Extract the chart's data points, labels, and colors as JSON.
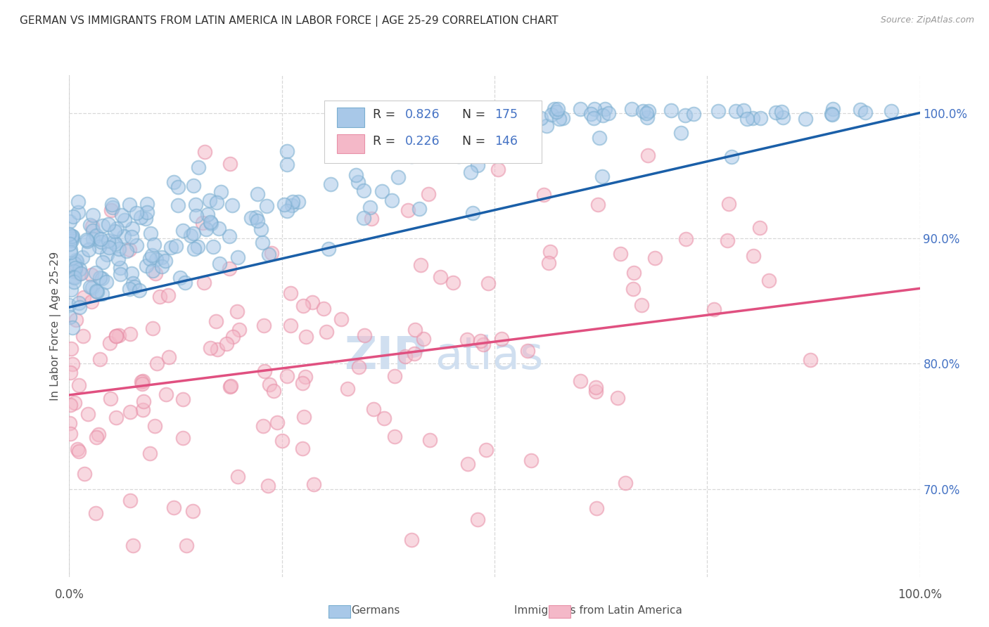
{
  "title": "GERMAN VS IMMIGRANTS FROM LATIN AMERICA IN LABOR FORCE | AGE 25-29 CORRELATION CHART",
  "source": "Source: ZipAtlas.com",
  "ylabel": "In Labor Force | Age 25-29",
  "y_ticks_right": [
    "70.0%",
    "80.0%",
    "90.0%",
    "100.0%"
  ],
  "y_tick_values": [
    0.7,
    0.8,
    0.9,
    1.0
  ],
  "x_tick_positions": [
    0.0,
    0.25,
    0.5,
    0.75,
    1.0
  ],
  "R_blue": 0.826,
  "N_blue": 175,
  "R_pink": 0.226,
  "N_pink": 146,
  "blue_color": "#a8c8e8",
  "blue_edge_color": "#7aaed0",
  "pink_color": "#f4b8c8",
  "pink_edge_color": "#e890a8",
  "blue_line_color": "#1a5fa8",
  "pink_line_color": "#e05080",
  "legend_n_color": "#4472c4",
  "watermark_color": "#d0dff0",
  "title_color": "#303030",
  "axis_label_color": "#505050",
  "tick_color_right": "#4472c4",
  "background_color": "#ffffff",
  "grid_color": "#d8d8d8",
  "xlim": [
    0.0,
    1.0
  ],
  "ylim": [
    0.63,
    1.03
  ],
  "blue_line_intercept": 0.845,
  "blue_line_slope": 0.155,
  "pink_line_intercept": 0.775,
  "pink_line_slope": 0.085,
  "bottom_legend_german": "Germans",
  "bottom_legend_latin": "Immigrants from Latin America"
}
